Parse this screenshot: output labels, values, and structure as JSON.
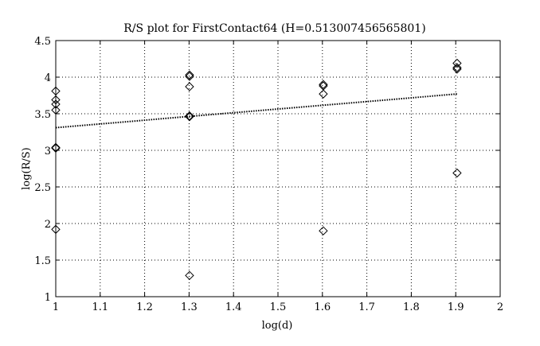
{
  "chart_data": {
    "type": "scatter",
    "title": "R/S plot for FirstContact64 (H=0.513007456565801)",
    "xlabel": "log(d)",
    "ylabel": "log(R/S)",
    "xlim": [
      1,
      2
    ],
    "ylim": [
      1,
      4.5
    ],
    "xticks": [
      "1",
      "1.1",
      "1.2",
      "1.3",
      "1.4",
      "1.5",
      "1.6",
      "1.7",
      "1.8",
      "1.9",
      "2"
    ],
    "yticks": [
      "1",
      "1.5",
      "2",
      "2.5",
      "3",
      "3.5",
      "4",
      "4.5"
    ],
    "grid": true,
    "marker": "diamond",
    "points": [
      {
        "x": 1.0,
        "y": 3.81
      },
      {
        "x": 1.0,
        "y": 3.69
      },
      {
        "x": 1.0,
        "y": 3.63
      },
      {
        "x": 1.0,
        "y": 3.55
      },
      {
        "x": 1.0,
        "y": 3.04
      },
      {
        "x": 1.0,
        "y": 3.03
      },
      {
        "x": 1.0,
        "y": 1.92
      },
      {
        "x": 1.301,
        "y": 4.03
      },
      {
        "x": 1.301,
        "y": 4.01
      },
      {
        "x": 1.301,
        "y": 3.87
      },
      {
        "x": 1.301,
        "y": 3.47
      },
      {
        "x": 1.301,
        "y": 3.46
      },
      {
        "x": 1.301,
        "y": 1.29
      },
      {
        "x": 1.602,
        "y": 3.9
      },
      {
        "x": 1.602,
        "y": 3.88
      },
      {
        "x": 1.602,
        "y": 3.77
      },
      {
        "x": 1.602,
        "y": 1.9
      },
      {
        "x": 1.903,
        "y": 4.19
      },
      {
        "x": 1.903,
        "y": 4.13
      },
      {
        "x": 1.903,
        "y": 4.11
      },
      {
        "x": 1.903,
        "y": 2.69
      }
    ],
    "fit_line": {
      "x": [
        1.0,
        1.903
      ],
      "y": [
        3.31,
        3.77
      ],
      "style": "dotted"
    },
    "colors": {
      "markers": "#000000",
      "grid": "#000000",
      "fit": "#000000",
      "background": "#ffffff"
    }
  }
}
